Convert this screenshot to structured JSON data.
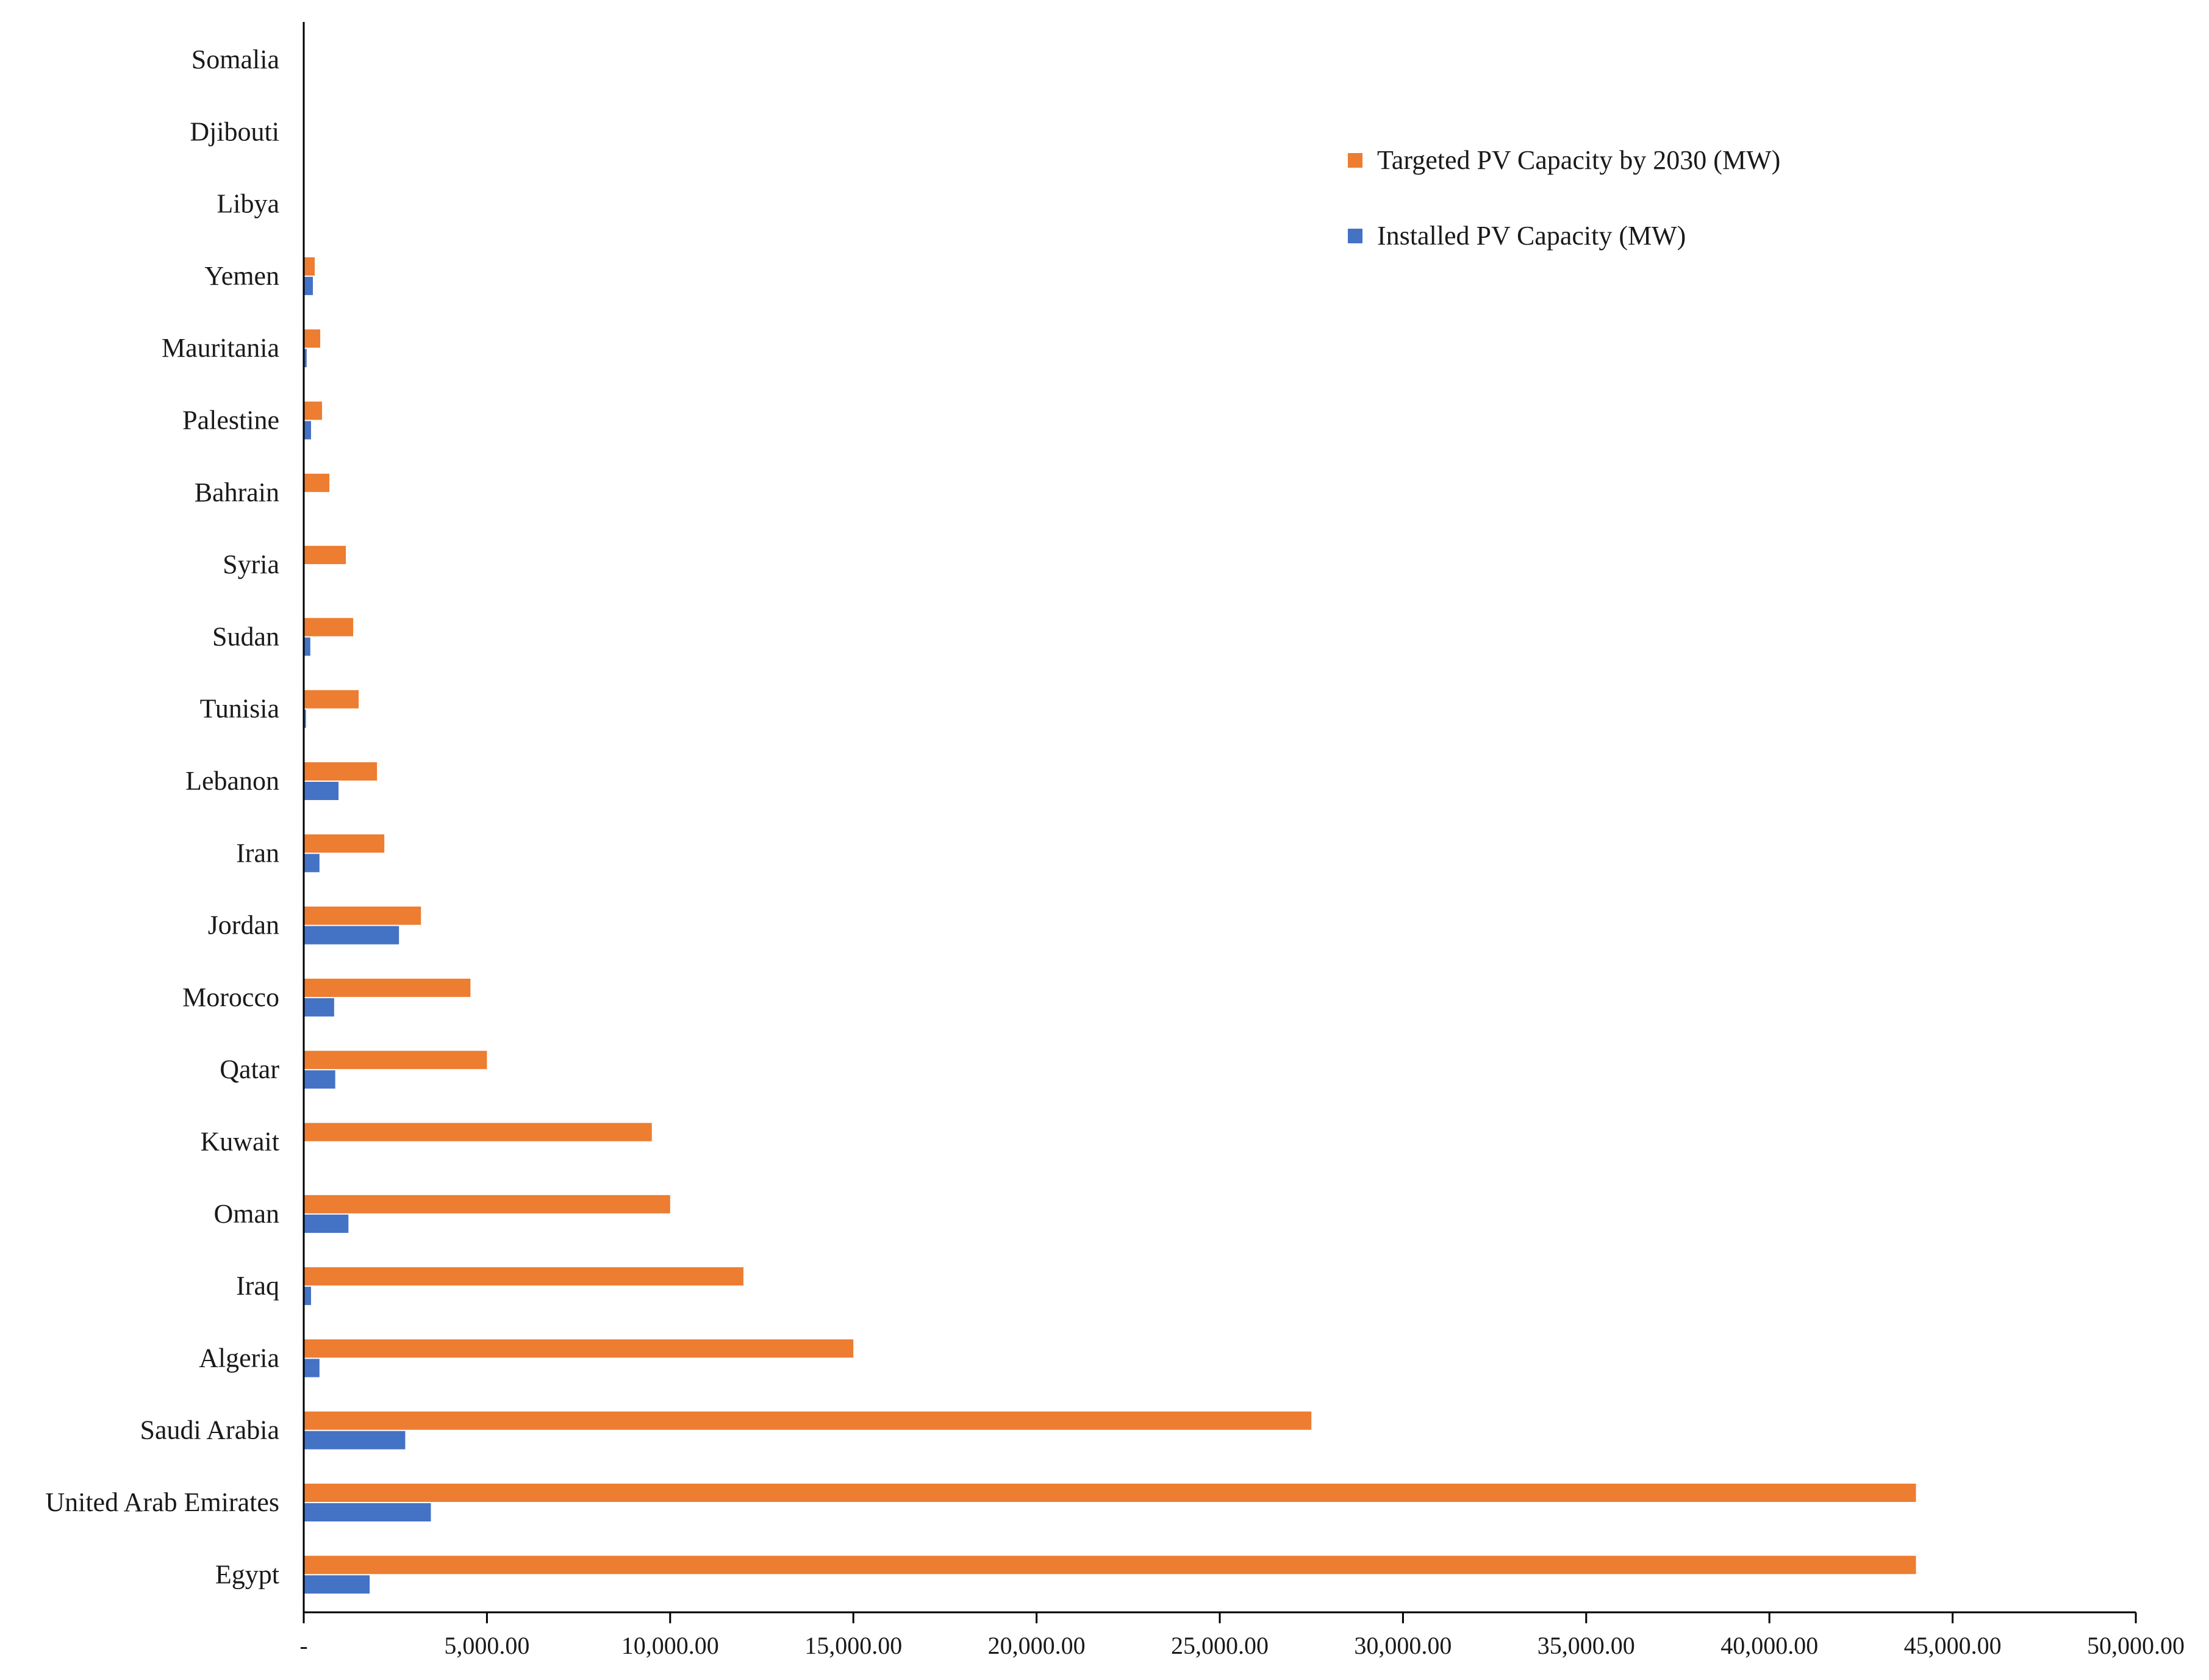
{
  "chart_data": {
    "type": "bar",
    "orientation": "horizontal",
    "title": "",
    "xlabel": "",
    "ylabel": "",
    "xlim": [
      0,
      50000
    ],
    "x_ticks": [
      0,
      5000,
      10000,
      15000,
      20000,
      25000,
      30000,
      35000,
      40000,
      45000,
      50000
    ],
    "x_tick_labels": [
      "-",
      "5,000.00",
      "10,000.00",
      "15,000.00",
      "20,000.00",
      "25,000.00",
      "30,000.00",
      "35,000.00",
      "40,000.00",
      "45,000.00",
      "50,000.00"
    ],
    "grid": false,
    "legend_position": "top-right",
    "categories": [
      "Somalia",
      "Djibouti",
      "Libya",
      "Yemen",
      "Mauritania",
      "Palestine",
      "Bahrain",
      "Syria",
      "Sudan",
      "Tunisia",
      "Lebanon",
      "Iran",
      "Jordan",
      "Morocco",
      "Qatar",
      "Kuwait",
      "Oman",
      "Iraq",
      "Algeria",
      "Saudi Arabia",
      "United Arab Emirates",
      "Egypt"
    ],
    "series": [
      {
        "name": "Targeted PV Capacity by 2030 (MW)",
        "color": "#ED7D31",
        "values": [
          0,
          0,
          0,
          300,
          450,
          500,
          700,
          1150,
          1350,
          1500,
          2000,
          2200,
          3200,
          4550,
          5000,
          9500,
          10000,
          12000,
          15000,
          27500,
          44000,
          44000
        ]
      },
      {
        "name": "Installed PV Capacity (MW)",
        "color": "#4472C4",
        "values": [
          0,
          0,
          0,
          250,
          80,
          200,
          10,
          20,
          180,
          60,
          950,
          430,
          2600,
          830,
          860,
          20,
          1220,
          200,
          430,
          2770,
          3470,
          1800
        ]
      }
    ]
  }
}
